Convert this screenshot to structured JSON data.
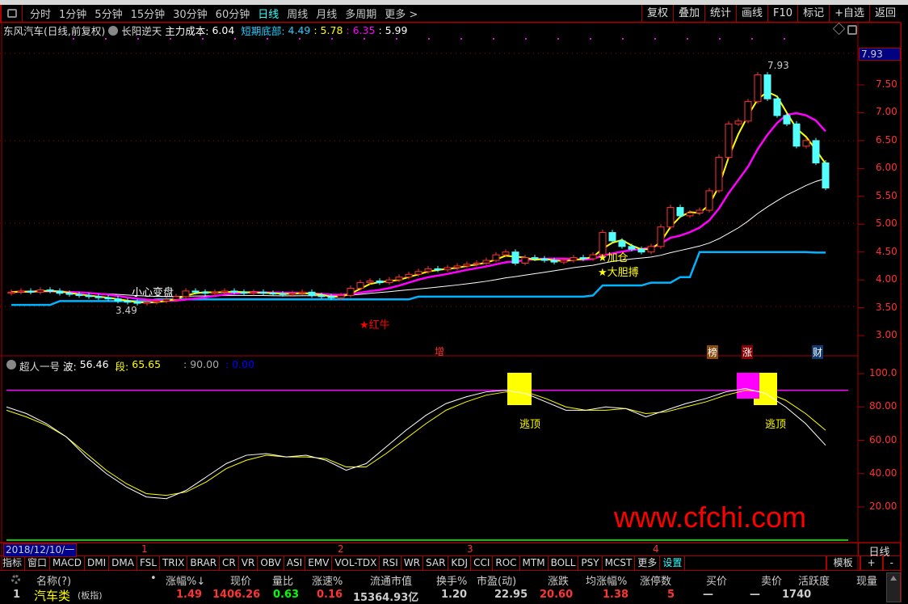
{
  "toolbar": {
    "periods": [
      "分时",
      "1分钟",
      "5分钟",
      "15分钟",
      "30分钟",
      "60分钟",
      "日线",
      "周线",
      "月线",
      "多周期",
      "更多 >"
    ],
    "active_period": "日线",
    "right_buttons": [
      "复权",
      "叠加",
      "统计",
      "画线",
      "F10",
      "标记",
      "+自选",
      "返回"
    ]
  },
  "info": {
    "stock": "东风汽车(日线,前复权)",
    "formula": "长阳逆天",
    "cost_label": "主力成本:",
    "cost": "6.04",
    "bottom_label": "短期底部:",
    "v1": "4.49",
    "v2": ": 5.78",
    "v3": ": 6.35",
    "v4": ": 5.99"
  },
  "price_axis": {
    "current": "7.93",
    "ticks": [
      "7.50",
      "7.00",
      "6.50",
      "6.00",
      "5.50",
      "5.00",
      "4.50",
      "4.00",
      "3.50",
      "3.00"
    ]
  },
  "annotations": {
    "high": "7.93",
    "low": "3.49",
    "caution": "小心变盘",
    "red_bull": "★红牛",
    "add_position": "★加仓",
    "bold_bet": "★大胆搏",
    "tag_zeng": "增",
    "tag_bang": "榜",
    "tag_zhang": "涨",
    "tag_cai": "财"
  },
  "indicator": {
    "name": "超人一号",
    "wave_label": "波:",
    "wave": "56.46",
    "seg_label": "段:",
    "seg": "65.65",
    "line_value": ": 90.00",
    "blue_value": ": 0.00",
    "ticks": [
      "100.0",
      "80.00",
      "60.00",
      "40.00",
      "20.00"
    ],
    "escape_top": "逃顶"
  },
  "date_axis": {
    "start": "2018/12/10/一",
    "months": [
      "1",
      "2",
      "3",
      "4"
    ],
    "period": "日线"
  },
  "indicator_tabs": [
    "指标",
    "窗口",
    "MACD",
    "DMI",
    "DMA",
    "FSL",
    "TRIX",
    "BRAR",
    "CR",
    "VR",
    "OBV",
    "ASI",
    "EMV",
    "VOL-TDX",
    "RSI",
    "WR",
    "SAR",
    "KDJ",
    "CCI",
    "ROC",
    "MTM",
    "BOLL",
    "PSY",
    "MCST",
    "更多",
    "设置"
  ],
  "indicator_tabs_right": [
    "模板",
    "+",
    "-"
  ],
  "table": {
    "headers": [
      "名称(?)",
      "•",
      "涨幅%↓",
      "现价",
      "量比",
      "涨速%",
      "流通市值",
      "换手%",
      "市盈(动)",
      "涨跌",
      "均涨幅%",
      "涨停数",
      "买价",
      "卖价",
      "活跃度",
      "现量"
    ],
    "row": {
      "index": "1",
      "name": "汽车类",
      "type": "(板指)",
      "change_pct": "1.49",
      "price": "1406.26",
      "vol_ratio": "0.63",
      "speed": "0.16",
      "float_cap": "15364.93亿",
      "turnover": "1.20",
      "pe": "22.95",
      "change": "20.60",
      "avg_change": "1.38",
      "limit_up": "5",
      "bid": "—",
      "ask": "—",
      "activity": "1740"
    }
  },
  "watermark": "www.cfchi.com",
  "colors": {
    "up": "#ff3232",
    "down": "#54ffff",
    "ma_short": "#ffff00",
    "ma_mid": "#ff00ff",
    "ma_long": "#ffffff",
    "bottom_line": "#00b4ff",
    "grid": "#a00000"
  },
  "chart_data": {
    "type": "candlestick",
    "ylim": [
      2.8,
      7.95
    ],
    "closes": [
      3.78,
      3.8,
      3.78,
      3.82,
      3.8,
      3.76,
      3.74,
      3.72,
      3.7,
      3.68,
      3.66,
      3.62,
      3.6,
      3.58,
      3.6,
      3.62,
      3.65,
      3.7,
      3.8,
      3.78,
      3.76,
      3.78,
      3.8,
      3.78,
      3.76,
      3.78,
      3.76,
      3.75,
      3.74,
      3.76,
      3.78,
      3.72,
      3.7,
      3.68,
      3.72,
      3.85,
      3.95,
      3.98,
      3.95,
      4.0,
      4.05,
      4.1,
      4.15,
      4.2,
      4.18,
      4.22,
      4.25,
      4.28,
      4.3,
      4.35,
      4.45,
      4.5,
      4.3,
      4.4,
      4.38,
      4.35,
      4.32,
      4.35,
      4.4,
      4.38,
      4.45,
      4.85,
      4.7,
      4.6,
      4.55,
      4.5,
      4.6,
      4.95,
      5.3,
      5.15,
      5.2,
      5.25,
      5.6,
      6.2,
      6.8,
      6.85,
      7.2,
      7.68,
      7.25,
      6.95,
      6.8,
      6.4,
      6.5,
      6.1,
      5.65
    ],
    "bottom_steps": [
      [
        0,
        3.55
      ],
      [
        5,
        3.62
      ],
      [
        15,
        3.65
      ],
      [
        42,
        3.7
      ],
      [
        60,
        3.72
      ],
      [
        61,
        3.9
      ],
      [
        66,
        3.95
      ],
      [
        69,
        4.05
      ],
      [
        71,
        4.5
      ],
      [
        83,
        4.49
      ]
    ],
    "indicator": {
      "ylim": [
        0,
        105
      ],
      "reference": 90,
      "wave": [
        80,
        76,
        70,
        62,
        50,
        40,
        32,
        26,
        25,
        30,
        38,
        46,
        51,
        52,
        50,
        51,
        48,
        42,
        46,
        56,
        66,
        75,
        82,
        86,
        89,
        90,
        88,
        83,
        78,
        78,
        80,
        79,
        74,
        78,
        82,
        85,
        89,
        91,
        88,
        80,
        70,
        57
      ],
      "segment": [
        78,
        74,
        69,
        62,
        52,
        42,
        34,
        28,
        27,
        29,
        35,
        43,
        48,
        51,
        50,
        50,
        49,
        44,
        44,
        52,
        61,
        70,
        78,
        83,
        87,
        89,
        89,
        85,
        80,
        78,
        78,
        79,
        76,
        77,
        80,
        83,
        87,
        90,
        89,
        84,
        76,
        66
      ]
    }
  }
}
